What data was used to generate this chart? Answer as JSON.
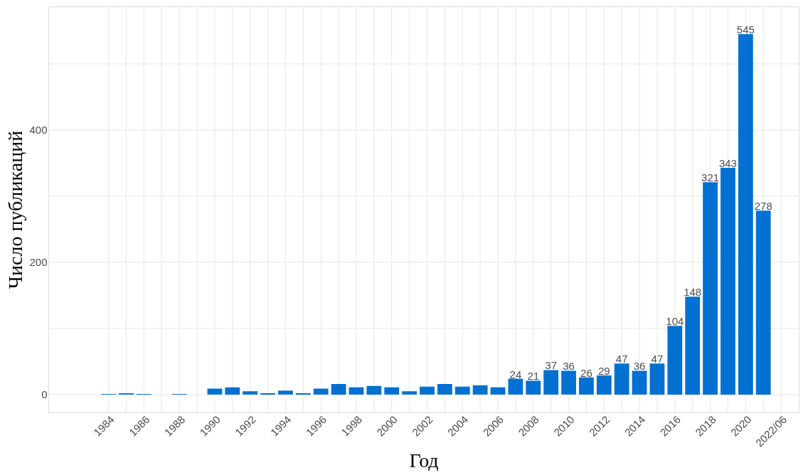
{
  "chart_data": {
    "type": "bar",
    "xlabel": "Год",
    "ylabel": "Число публикаций",
    "x": [
      1984,
      1985,
      1986,
      1987,
      1988,
      1989,
      1990,
      1991,
      1992,
      1993,
      1994,
      1995,
      1996,
      1997,
      1998,
      1999,
      2000,
      2001,
      2002,
      2003,
      2004,
      2005,
      2006,
      2007,
      2008,
      2009,
      2010,
      2011,
      2012,
      2013,
      2014,
      2015,
      2016,
      2017,
      2018,
      2019,
      2020,
      2021
    ],
    "values": [
      1,
      2,
      1,
      null,
      1,
      null,
      9,
      11,
      5,
      2,
      6,
      2,
      9,
      16,
      11,
      13,
      11,
      5,
      12,
      16,
      12,
      14,
      11,
      24,
      21,
      37,
      36,
      26,
      29,
      47,
      36,
      47,
      104,
      148,
      321,
      343,
      545,
      278
    ],
    "value_labels": [
      null,
      null,
      null,
      null,
      null,
      null,
      null,
      null,
      null,
      null,
      null,
      null,
      null,
      null,
      null,
      null,
      null,
      null,
      null,
      null,
      null,
      null,
      null,
      "24",
      "21",
      "37",
      "36",
      "26",
      "29",
      "47",
      "36",
      "47",
      "104",
      "148",
      "321",
      "343",
      "545",
      "278"
    ],
    "color": "#0070d2",
    "xlim": [
      1980.8,
      2022.8
    ],
    "xticks": [
      1984,
      {
        "value": 1985,
        "label": null
      },
      1986,
      {
        "value": 1987,
        "label": null
      },
      1988,
      {
        "value": 1989,
        "label": null
      },
      1990,
      {
        "value": 1991,
        "label": null
      },
      1992,
      {
        "value": 1993,
        "label": null
      },
      1994,
      {
        "value": 1995,
        "label": null
      },
      1996,
      {
        "value": 1997,
        "label": null
      },
      1998,
      {
        "value": 1999,
        "label": null
      },
      2000,
      {
        "value": 2001,
        "label": null
      },
      2002,
      {
        "value": 2003,
        "label": null
      },
      2004,
      {
        "value": 2005,
        "label": null
      },
      2006,
      {
        "value": 2007,
        "label": null
      },
      2008,
      {
        "value": 2009,
        "label": null
      },
      2010,
      {
        "value": 2011,
        "label": null
      },
      2012,
      {
        "value": 2013,
        "label": null
      },
      2014,
      {
        "value": 2015,
        "label": null
      },
      2016,
      {
        "value": 2017,
        "label": null
      },
      2018,
      {
        "value": 2019,
        "label": null
      },
      2020,
      {
        "value": 2021,
        "label": null
      },
      {
        "value": 2022,
        "label": "2022/06"
      }
    ],
    "ylim": [
      -27,
      587
    ],
    "yticks": [
      0,
      {
        "value": 100,
        "label": null
      },
      200,
      {
        "value": 300,
        "label": null
      },
      400,
      {
        "value": 500,
        "label": null
      }
    ],
    "grid": true
  }
}
